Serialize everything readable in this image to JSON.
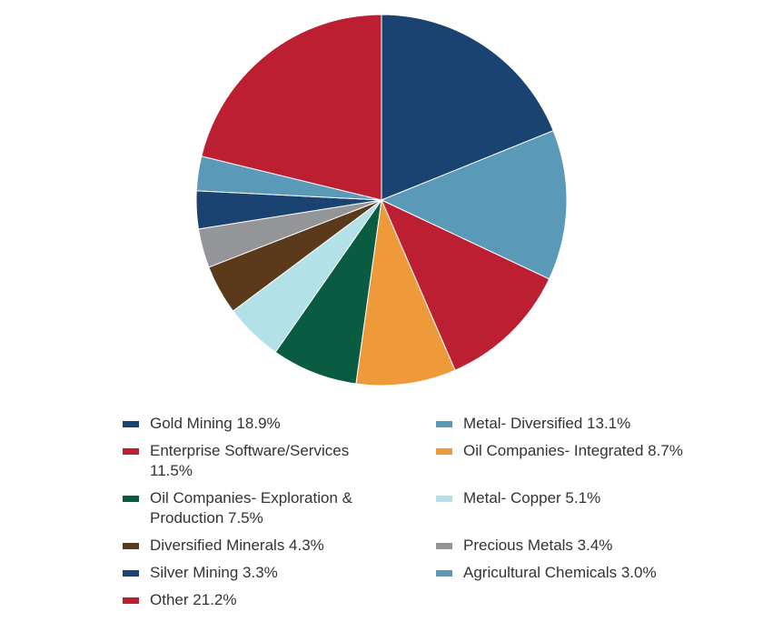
{
  "chart_data": {
    "type": "pie",
    "title": "",
    "slices": [
      {
        "label": "Gold Mining 18.9%",
        "value": 18.9,
        "color": "#1a4372"
      },
      {
        "label": "Metal- Diversified 13.1%",
        "value": 13.1,
        "color": "#5a9ab8"
      },
      {
        "label": "Enterprise Software/Services 11.5%",
        "value": 11.5,
        "color": "#bb1f31"
      },
      {
        "label": "Oil Companies- Integrated 8.7%",
        "value": 8.7,
        "color": "#ee9a3a"
      },
      {
        "label": "Oil Companies- Exploration & Production 7.5%",
        "value": 7.5,
        "color": "#095c41"
      },
      {
        "label": "Metal- Copper 5.1%",
        "value": 5.1,
        "color": "#b3e1e8"
      },
      {
        "label": "Diversified Minerals 4.3%",
        "value": 4.3,
        "color": "#5b3a1c"
      },
      {
        "label": "Precious Metals 3.4%",
        "value": 3.4,
        "color": "#939598"
      },
      {
        "label": "Silver Mining 3.3%",
        "value": 3.3,
        "color": "#1a4372"
      },
      {
        "label": "Agricultural Chemicals 3.0%",
        "value": 3.0,
        "color": "#5a9ab8"
      },
      {
        "label": "Other 21.2%",
        "value": 21.2,
        "color": "#bb1f31"
      }
    ],
    "legend_position": "bottom"
  }
}
